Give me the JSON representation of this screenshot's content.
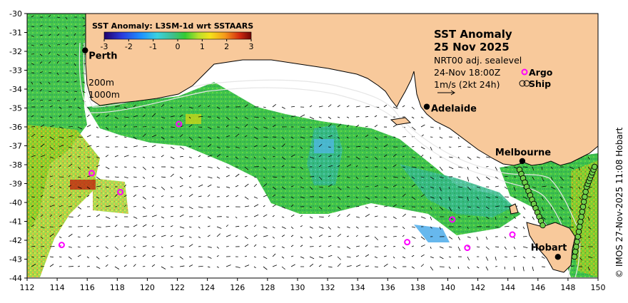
{
  "map": {
    "title": "SST Anomaly",
    "date": "25 Nov 2025",
    "current_source": "NRT00 adj. sealevel",
    "current_time": "24-Nov 18:00Z",
    "current_scale": "1m/s (2kt 24h)",
    "legend_argo": "Argo",
    "legend_ship": "Ship",
    "credit": "© IMOS 27-Nov-2025 11:08 Hobart",
    "colors": {
      "land": "#f8c99b",
      "argo": "#ff00ff",
      "coast": "#000000"
    }
  },
  "colorbar": {
    "title": "SST Anomaly: L3SM-1d wrt SSTAARS",
    "ticks": [
      "-3",
      "-2",
      "-1",
      "0",
      "1",
      "2",
      "3"
    ]
  },
  "isobaths": [
    "200m",
    "1000m"
  ],
  "cities": [
    {
      "name": "Perth",
      "lon": 115.86,
      "lat": -31.95
    },
    {
      "name": "Adelaide",
      "lon": 138.6,
      "lat": -34.93
    },
    {
      "name": "Melbourne",
      "lon": 144.96,
      "lat": -37.81
    },
    {
      "name": "Hobart",
      "lon": 147.33,
      "lat": -42.88
    }
  ],
  "axes": {
    "lon_ticks": [
      "112",
      "114",
      "116",
      "118",
      "120",
      "122",
      "124",
      "126",
      "128",
      "130",
      "132",
      "134",
      "136",
      "138",
      "140",
      "142",
      "144",
      "146",
      "148",
      "150"
    ],
    "lat_ticks": [
      "-30",
      "-31",
      "-32",
      "-33",
      "-34",
      "-35",
      "-36",
      "-37",
      "-38",
      "-39",
      "-40",
      "-41",
      "-42",
      "-43",
      "-44"
    ],
    "lon_range": [
      112,
      150
    ],
    "lat_range": [
      -44,
      -30
    ]
  },
  "argo_floats": [
    {
      "lon": 122.1,
      "lat": -35.85
    },
    {
      "lon": 116.3,
      "lat": -38.45
    },
    {
      "lon": 118.2,
      "lat": -39.45
    },
    {
      "lon": 114.3,
      "lat": -42.25
    },
    {
      "lon": 137.3,
      "lat": -42.1
    },
    {
      "lon": 140.3,
      "lat": -40.9
    },
    {
      "lon": 141.3,
      "lat": -42.4
    },
    {
      "lon": 144.3,
      "lat": -41.7
    }
  ]
}
